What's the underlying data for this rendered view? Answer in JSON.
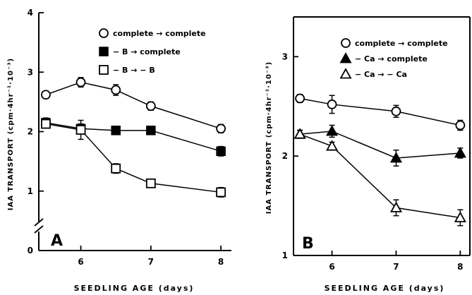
{
  "chart_data": [
    {
      "panel": "A",
      "type": "line",
      "xlabel": "SEEDLING AGE (days)",
      "ylabel": "IAA TRANSPORT (cpm·4hr⁻¹·10⁻³)",
      "xticks": [
        "6",
        "7",
        "8"
      ],
      "yticks": [
        "0",
        "1",
        "2",
        "3",
        "4"
      ],
      "xlim": [
        5.4,
        8.15
      ],
      "ylim": [
        0,
        4
      ],
      "axis_break_y": true,
      "legend_position": "top-right",
      "series": [
        {
          "name": "complete → complete",
          "marker": "open-circle",
          "x": [
            5.5,
            6,
            6.5,
            7,
            8
          ],
          "y": [
            2.62,
            2.83,
            2.7,
            2.43,
            2.05
          ],
          "err": [
            0.06,
            0.08,
            0.09,
            0.07,
            0.07
          ]
        },
        {
          "name": "− B → complete",
          "marker": "filled-square",
          "x": [
            5.5,
            6,
            6.5,
            7,
            8
          ],
          "y": [
            2.15,
            2.05,
            2.02,
            2.02,
            1.67
          ],
          "err": [
            0.08,
            0.08,
            0.07,
            0.07,
            0.08
          ]
        },
        {
          "name": "− B → − B",
          "marker": "open-square",
          "x": [
            5.5,
            6,
            6.5,
            7,
            8
          ],
          "y": [
            2.13,
            2.03,
            1.38,
            1.13,
            0.98
          ],
          "err": [
            0.06,
            0.16,
            0.08,
            0.07,
            0.08
          ]
        }
      ]
    },
    {
      "panel": "B",
      "type": "line",
      "xlabel": "SEEDLING AGE (days)",
      "ylabel": "IAA TRANSPORT (cpm·4hr⁻¹·10⁻³)",
      "xticks": [
        "6",
        "7",
        "8"
      ],
      "yticks": [
        "1",
        "2",
        "3"
      ],
      "xlim": [
        5.4,
        8.15
      ],
      "ylim": [
        1,
        3.4
      ],
      "legend_position": "top-right",
      "series": [
        {
          "name": "complete → complete",
          "marker": "open-circle",
          "x": [
            5.5,
            6,
            7,
            8
          ],
          "y": [
            2.58,
            2.52,
            2.45,
            2.31
          ],
          "err": [
            0.04,
            0.09,
            0.06,
            0.05
          ]
        },
        {
          "name": "− Ca → complete",
          "marker": "filled-triangle",
          "x": [
            5.5,
            6,
            7,
            8
          ],
          "y": [
            2.22,
            2.25,
            1.98,
            2.03
          ],
          "err": [
            0.04,
            0.06,
            0.08,
            0.05
          ]
        },
        {
          "name": "− Ca → − Ca",
          "marker": "open-triangle",
          "x": [
            5.5,
            6,
            7,
            8
          ],
          "y": [
            2.22,
            2.1,
            1.48,
            1.38
          ],
          "err": [
            0.04,
            0.04,
            0.08,
            0.08
          ]
        }
      ]
    }
  ]
}
